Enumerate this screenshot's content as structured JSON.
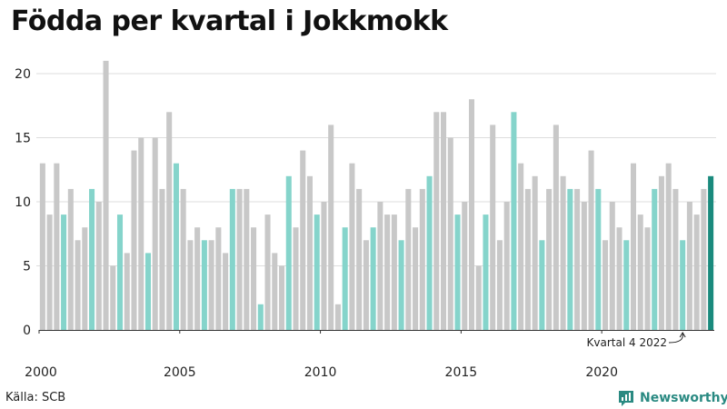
{
  "title": "Födda per kvartal i Jokkmokk",
  "source": "Källa: SCB",
  "brand": "Newsworthy",
  "colors": {
    "default": "#c8c8c8",
    "q4": "#85d4cb",
    "latest": "#1a8a7d",
    "brand": "#2a8a82",
    "grid": "#dddddd"
  },
  "chart_data": {
    "type": "bar",
    "title": "Födda per kvartal i Jokkmokk",
    "xlabel": "",
    "ylabel": "",
    "ylim": [
      0,
      21
    ],
    "yticks": [
      0,
      5,
      10,
      15,
      20
    ],
    "xtick_labels": [
      "2000",
      "2005",
      "2010",
      "2015",
      "2020"
    ],
    "grid": true,
    "start_year": 2000,
    "quarters_per_year": 4,
    "values": [
      13,
      9,
      13,
      9,
      11,
      7,
      8,
      11,
      10,
      21,
      5,
      9,
      6,
      14,
      15,
      6,
      15,
      11,
      17,
      13,
      11,
      7,
      8,
      7,
      7,
      8,
      6,
      11,
      11,
      11,
      8,
      2,
      9,
      6,
      5,
      12,
      8,
      14,
      12,
      9,
      10,
      16,
      2,
      8,
      13,
      11,
      7,
      8,
      10,
      9,
      9,
      7,
      11,
      8,
      11,
      12,
      17,
      17,
      15,
      9,
      10,
      18,
      5,
      9,
      16,
      7,
      10,
      17,
      13,
      11,
      12,
      7,
      11,
      16,
      12,
      11,
      11,
      10,
      14,
      11,
      7,
      10,
      8,
      7,
      13,
      9,
      8,
      11,
      12,
      13,
      11,
      7,
      10,
      9,
      11,
      12
    ],
    "annotation": "Kvartal 4 2022"
  }
}
